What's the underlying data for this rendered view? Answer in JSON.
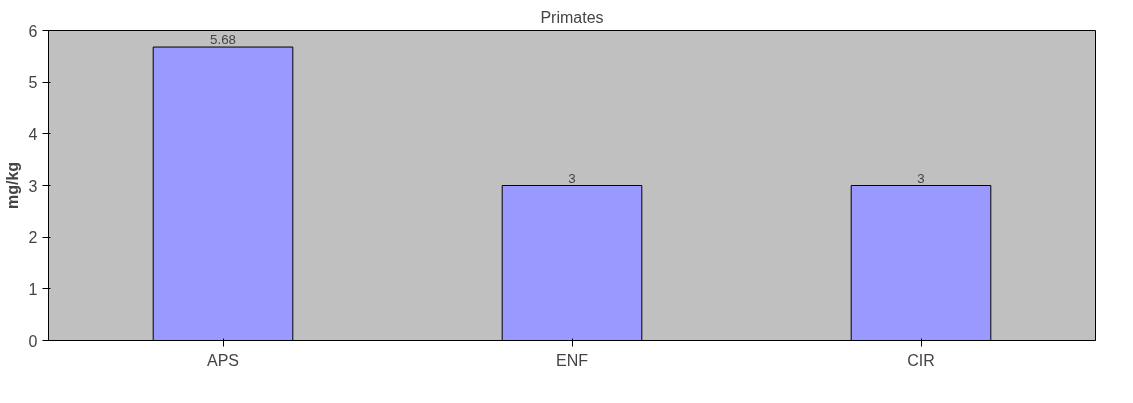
{
  "chart_data": {
    "type": "bar",
    "title": "Primates",
    "ylabel": "mg/kg",
    "categories": [
      "APS",
      "ENF",
      "CIR"
    ],
    "values": [
      5.68,
      3,
      3
    ],
    "color": "#9999ff",
    "ylim": [
      0,
      6
    ],
    "yticks": [
      0,
      1,
      2,
      3,
      4,
      5,
      6
    ],
    "grid": false,
    "data_labels": true
  }
}
